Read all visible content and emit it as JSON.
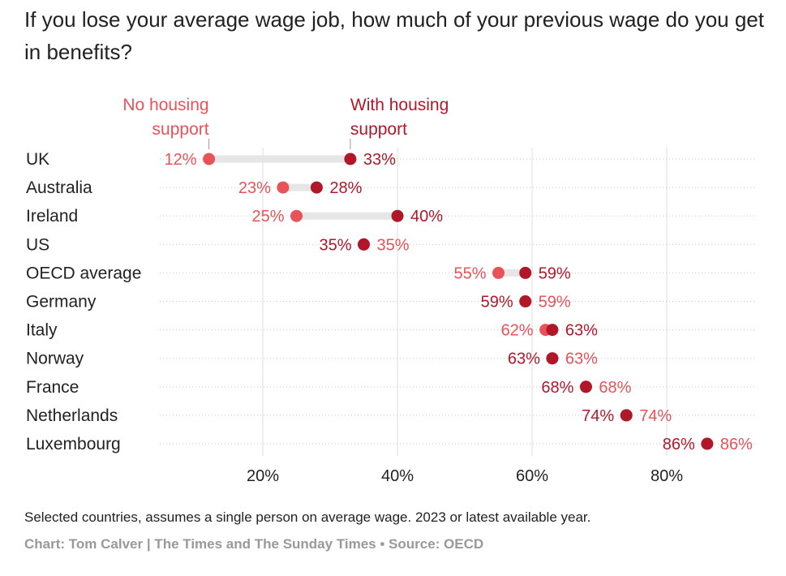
{
  "title": "If you lose your average wage job, how much of your previous wage do you get in benefits?",
  "note": "Selected countries, assumes a single person on average wage. 2023 or latest available year.",
  "credit": "Chart: Tom Calver | The Times and The Sunday Times • Source: OECD",
  "colors": {
    "no_housing": "#e8535a",
    "with_housing": "#b0182a",
    "connector": "#e6e6e6",
    "grid": "#dcdcdc",
    "dots": "#cfcfcf"
  },
  "chart_data": {
    "type": "dot",
    "categories": [
      "UK",
      "Australia",
      "Ireland",
      "US",
      "OECD average",
      "Germany",
      "Italy",
      "Norway",
      "France",
      "Netherlands",
      "Luxembourg"
    ],
    "series": [
      {
        "name": "No housing support",
        "values": [
          12,
          23,
          25,
          35,
          55,
          59,
          62,
          63,
          68,
          74,
          86
        ]
      },
      {
        "name": "With housing support",
        "values": [
          33,
          28,
          40,
          35,
          59,
          59,
          63,
          63,
          68,
          74,
          86
        ]
      }
    ],
    "legend_labels": [
      [
        "No housing",
        "support"
      ],
      [
        "With housing",
        "support"
      ]
    ],
    "tick_values": [
      20,
      40,
      60,
      80
    ],
    "tick_labels": [
      "20%",
      "40%",
      "60%",
      "80%"
    ],
    "value_suffix": "%",
    "xlim": [
      5,
      92
    ],
    "grid": true
  }
}
